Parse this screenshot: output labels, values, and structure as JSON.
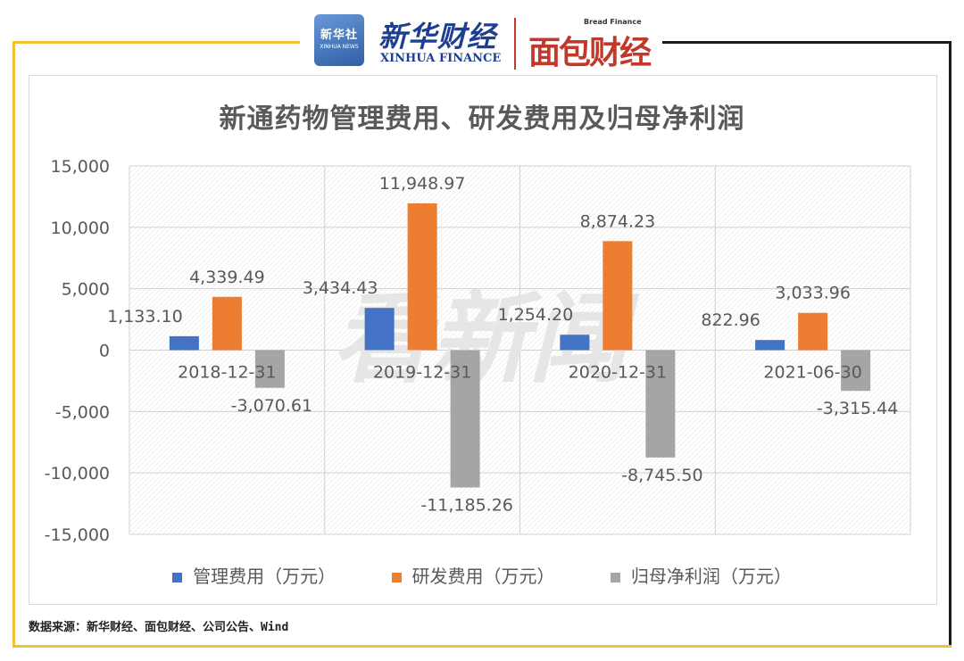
{
  "header": {
    "xinhua_badge_cn": "新华社",
    "xinhua_badge_en": "XINHUA NEWS",
    "xinhua_finance_cn": "新华财经",
    "xinhua_finance_en": "XINHUA FINANCE",
    "bread_finance_en": "Bread Finance",
    "bread_finance_cn": "面包财经"
  },
  "watermark": "看新闻",
  "source": "数据来源：新华财经、面包财经、公司公告、Wind",
  "chart_data": {
    "type": "bar",
    "title": "新通药物管理费用、研发费用及归母净利润",
    "categories": [
      "2018-12-31",
      "2019-12-31",
      "2020-12-31",
      "2021-06-30"
    ],
    "series": [
      {
        "name": "管理费用（万元）",
        "color": "#4472c4",
        "values": [
          1133.1,
          3434.43,
          1254.2,
          822.96
        ],
        "labels": [
          "1,133.10",
          "3,434.43",
          "1,254.20",
          "822.96"
        ]
      },
      {
        "name": "研发费用（万元）",
        "color": "#ed7d31",
        "values": [
          4339.49,
          11948.97,
          8874.23,
          3033.96
        ],
        "labels": [
          "4,339.49",
          "11,948.97",
          "8,874.23",
          "3,033.96"
        ]
      },
      {
        "name": "归母净利润（万元）",
        "color": "#a5a5a5",
        "values": [
          -3070.61,
          -11185.26,
          -8745.5,
          -3315.44
        ],
        "labels": [
          "-3,070.61",
          "-11,185.26",
          "-8,745.50",
          "-3,315.44"
        ]
      }
    ],
    "ylim": [
      -15000,
      15000
    ],
    "yticks": [
      15000,
      10000,
      5000,
      0,
      -5000,
      -10000,
      -15000
    ],
    "ytick_labels": [
      "15,000",
      "10,000",
      "5,000",
      "0",
      "-5,000",
      "-10,000",
      "-15,000"
    ],
    "grid": true,
    "legend": "bottom"
  }
}
